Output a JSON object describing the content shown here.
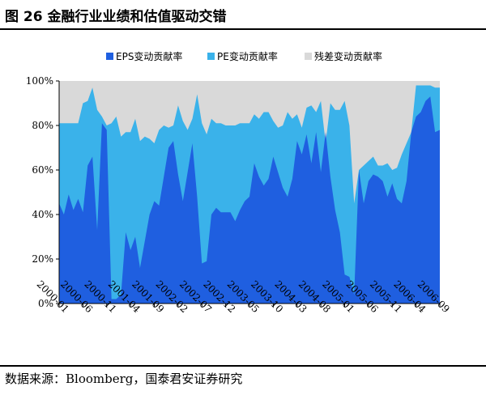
{
  "figure": {
    "title": "图 26  金融行业业绩和估值驱动交错",
    "source": "数据来源：Bloomberg，国泰君安证券研究"
  },
  "colors": {
    "eps": "#1f5fe0",
    "pe": "#3ab2ea",
    "resid": "#d9d9d9"
  },
  "chart_data": {
    "type": "area",
    "stacked": true,
    "title": "",
    "xlabel": "",
    "ylabel": "",
    "ylim": [
      0,
      100
    ],
    "y_ticks": [
      "0%",
      "20%",
      "40%",
      "60%",
      "80%",
      "100%"
    ],
    "x_tick_labels": [
      "2000-01",
      "2000-06",
      "2000-11",
      "2001-04",
      "2001-09",
      "2002-02",
      "2002-07",
      "2002-12",
      "2003-05",
      "2003-10",
      "2004-03",
      "2004-08",
      "2005-01",
      "2005-06",
      "2005-11",
      "2006-04",
      "2006-09"
    ],
    "x": [
      "2000-01",
      "2000-02",
      "2000-03",
      "2000-04",
      "2000-05",
      "2000-06",
      "2000-07",
      "2000-08",
      "2000-09",
      "2000-10",
      "2000-11",
      "2000-12",
      "2001-01",
      "2001-02",
      "2001-03",
      "2001-04",
      "2001-05",
      "2001-06",
      "2001-07",
      "2001-08",
      "2001-09",
      "2001-10",
      "2001-11",
      "2001-12",
      "2002-01",
      "2002-02",
      "2002-03",
      "2002-04",
      "2002-05",
      "2002-06",
      "2002-07",
      "2002-08",
      "2002-09",
      "2002-10",
      "2002-11",
      "2002-12",
      "2003-01",
      "2003-02",
      "2003-03",
      "2003-04",
      "2003-05",
      "2003-06",
      "2003-07",
      "2003-08",
      "2003-09",
      "2003-10",
      "2003-11",
      "2003-12",
      "2004-01",
      "2004-02",
      "2004-03",
      "2004-04",
      "2004-05",
      "2004-06",
      "2004-07",
      "2004-08",
      "2004-09",
      "2004-10",
      "2004-11",
      "2004-12",
      "2005-01",
      "2005-02",
      "2005-03",
      "2005-04",
      "2005-05",
      "2005-06",
      "2005-07",
      "2005-08",
      "2005-09",
      "2005-10",
      "2005-11",
      "2005-12",
      "2006-01",
      "2006-02",
      "2006-03",
      "2006-04",
      "2006-05",
      "2006-06",
      "2006-07",
      "2006-08",
      "2006-09"
    ],
    "legend_position": "top",
    "series": [
      {
        "name": "EPS变动贡献率",
        "values": [
          45,
          40,
          49,
          42,
          47,
          41,
          62,
          66,
          33,
          81,
          78,
          2,
          2,
          4,
          32,
          24,
          30,
          16,
          28,
          40,
          46,
          44,
          57,
          70,
          73,
          58,
          46,
          59,
          72,
          48,
          18,
          19,
          40,
          43,
          41,
          41,
          41,
          37,
          42,
          46,
          48,
          63,
          57,
          53,
          56,
          66,
          59,
          52,
          48,
          56,
          73,
          67,
          76,
          63,
          77,
          59,
          77,
          57,
          42,
          32,
          13,
          12,
          4,
          60,
          45,
          55,
          58,
          57,
          55,
          48,
          54,
          47,
          45,
          55,
          77,
          84,
          86,
          91,
          93,
          77,
          78
        ],
        "cumulative": [
          81,
          81,
          81,
          81,
          81,
          90,
          91,
          97,
          87,
          84,
          80,
          81,
          84,
          75,
          77,
          77,
          83,
          73,
          75,
          74,
          72,
          78,
          80,
          79,
          80,
          89,
          82,
          78,
          83,
          94,
          81,
          76,
          83,
          81,
          81,
          80,
          80,
          80,
          81,
          81,
          81,
          85,
          83,
          86,
          86,
          82,
          79,
          80,
          86,
          83,
          85,
          79,
          88,
          89,
          86,
          91,
          72,
          90,
          87,
          87,
          91,
          80,
          45,
          60,
          62,
          64,
          66,
          62,
          62,
          63,
          60,
          61,
          67,
          72,
          77,
          98,
          98,
          98,
          98,
          97,
          97
        ]
      },
      {
        "name": "PE变动贡献率"
      },
      {
        "name": "残差变动贡献率"
      }
    ]
  }
}
